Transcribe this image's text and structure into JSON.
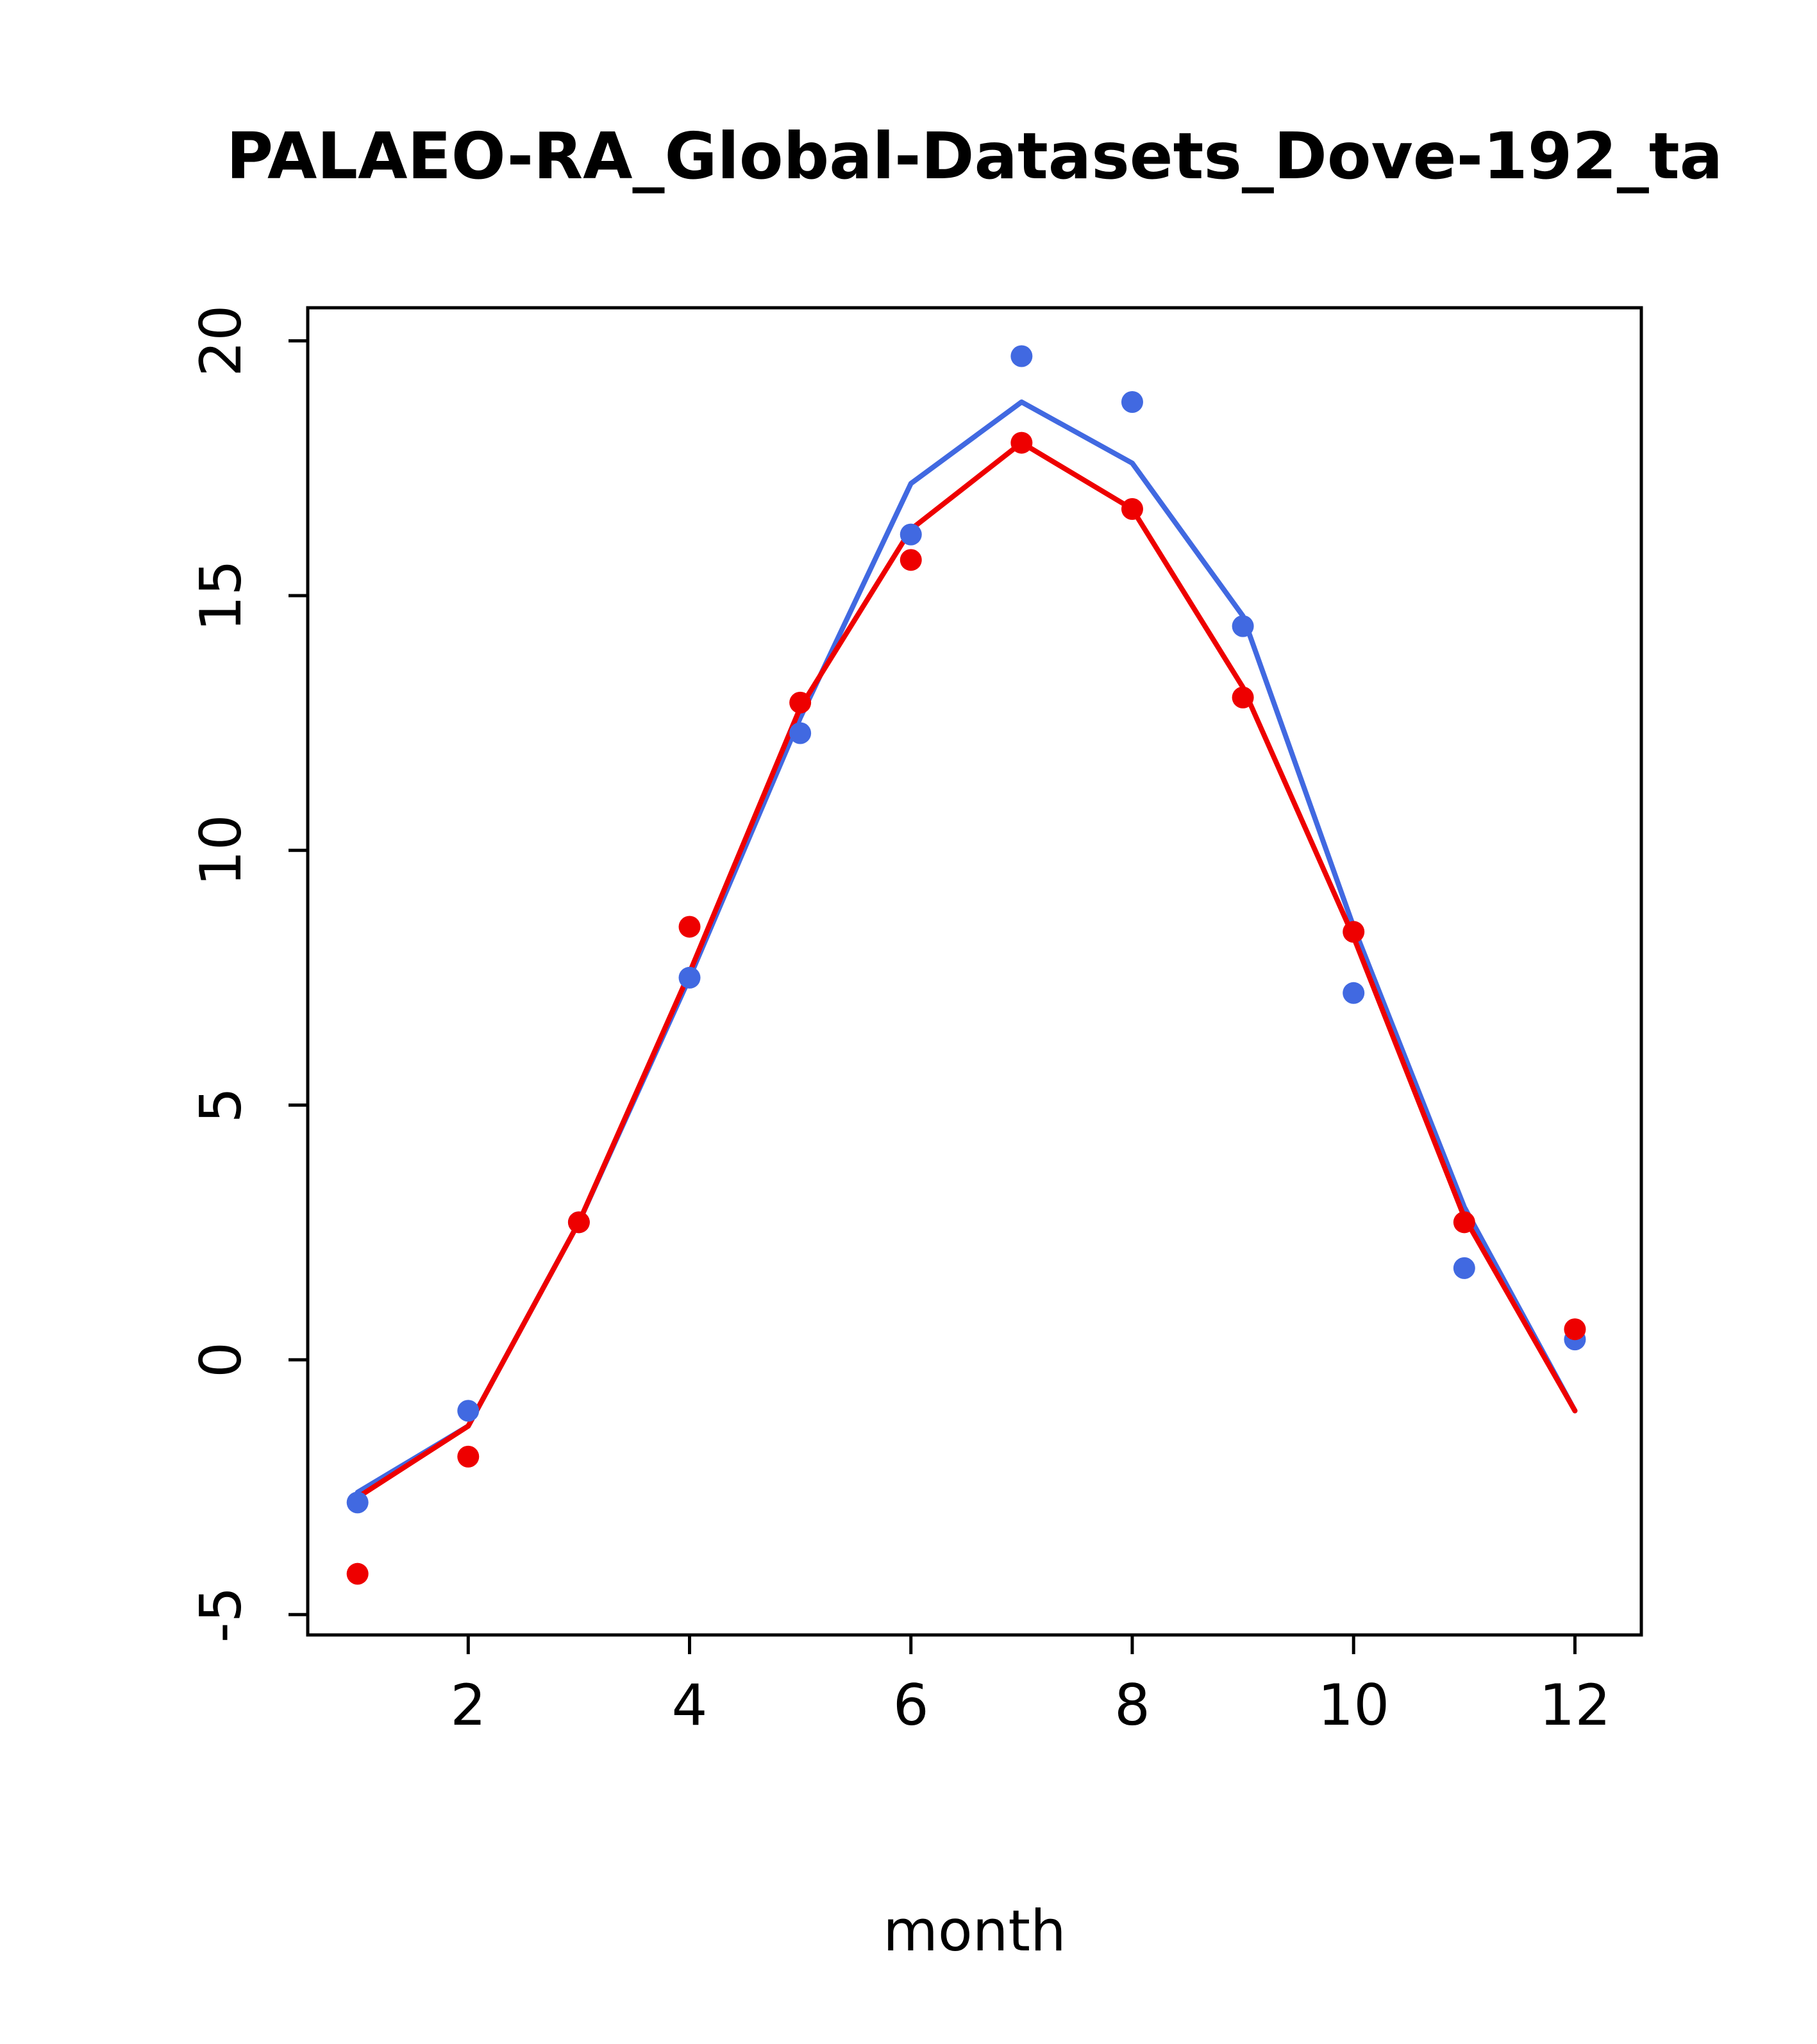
{
  "chart_data": {
    "type": "line",
    "title": "PALAEO-RA_Global-Datasets_Dove-192_ta",
    "xlabel": "month",
    "ylabel": "",
    "x": [
      1,
      2,
      3,
      4,
      5,
      6,
      7,
      8,
      9,
      10,
      11,
      12
    ],
    "xticks": [
      2,
      4,
      6,
      8,
      10,
      12
    ],
    "yticks": [
      -5,
      0,
      5,
      10,
      15,
      20
    ],
    "xlim": [
      0.55,
      12.6
    ],
    "ylim": [
      -5.4,
      20.65
    ],
    "colors": {
      "blue": "#4169E1",
      "red": "#EE0000"
    },
    "series": [
      {
        "name": "blue-line",
        "kind": "line",
        "color": "#4169E1",
        "values": [
          -2.6,
          -1.3,
          2.7,
          7.5,
          12.6,
          17.2,
          18.8,
          17.6,
          14.6,
          8.5,
          3.0,
          -1.0
        ]
      },
      {
        "name": "red-line",
        "kind": "line",
        "color": "#EE0000",
        "values": [
          -2.7,
          -1.3,
          2.7,
          7.6,
          12.8,
          16.3,
          18.0,
          16.7,
          13.2,
          8.3,
          2.8,
          -1.0
        ]
      },
      {
        "name": "blue-points",
        "kind": "points",
        "color": "#4169E1",
        "values": [
          -2.8,
          -1.0,
          2.7,
          7.5,
          12.3,
          16.2,
          19.7,
          18.8,
          14.4,
          7.2,
          1.8,
          0.4
        ]
      },
      {
        "name": "red-points",
        "kind": "points",
        "color": "#EE0000",
        "values": [
          -4.2,
          -1.9,
          2.7,
          8.5,
          12.9,
          15.7,
          18.0,
          16.7,
          13.0,
          8.4,
          2.7,
          0.6
        ]
      }
    ],
    "legend": "none",
    "grid": false
  }
}
